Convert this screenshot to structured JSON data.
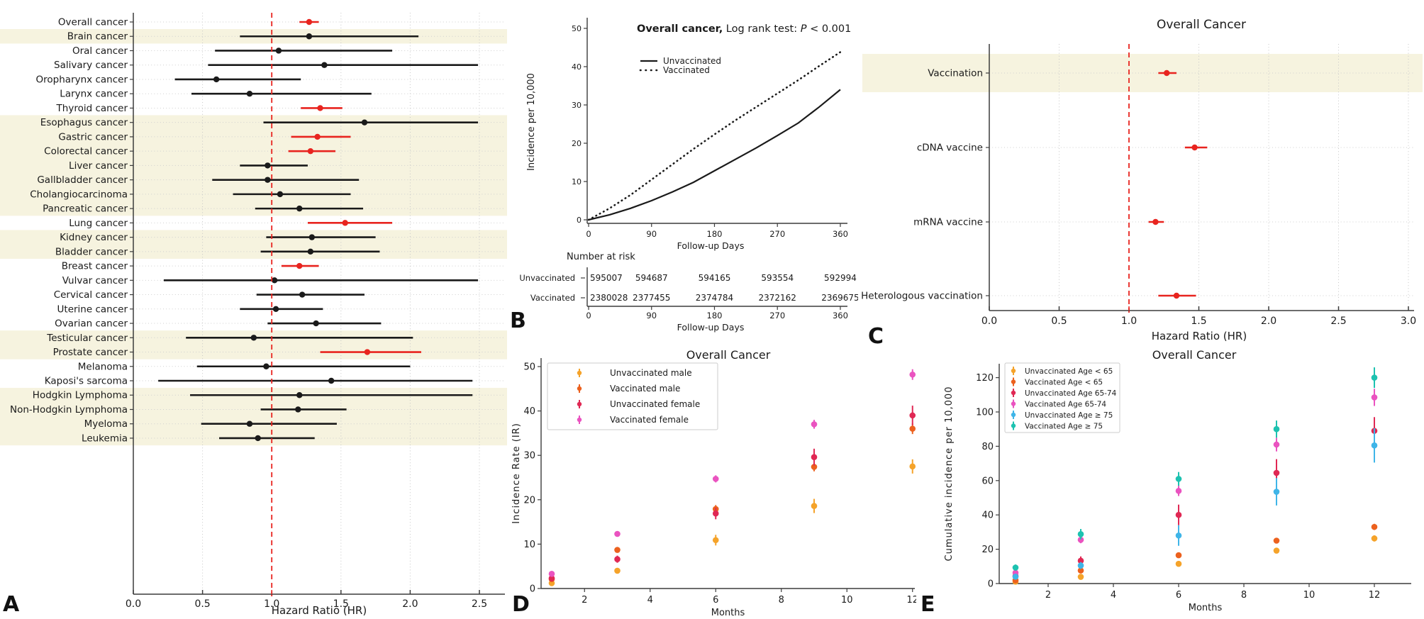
{
  "colors": {
    "significant": "#e8241f",
    "nonsignificant": "#1a1a1a",
    "band": "#f6f3df",
    "grid": "#c6c6c6",
    "axis": "#3c3c3c",
    "ref_line": "#e8241f",
    "curve": "#1a1a1a"
  },
  "chart_data": [
    {
      "id": "A",
      "type": "forest",
      "letter": "A",
      "xlabel": "Hazard Ratio (HR)",
      "x_ticks": [
        "0.0",
        "0.5",
        "1.0",
        "1.5",
        "2.0",
        "2.5"
      ],
      "xlim": [
        0,
        2.68
      ],
      "ref_line": 1.0,
      "rows": [
        {
          "label": "Overall cancer",
          "hr": 1.27,
          "lo": 1.2,
          "hi": 1.34,
          "sig": true,
          "shaded": false
        },
        {
          "label": "Brain cancer",
          "hr": 1.27,
          "lo": 0.77,
          "hi": 2.06,
          "sig": false,
          "shaded": true
        },
        {
          "label": "Oral cancer",
          "hr": 1.05,
          "lo": 0.59,
          "hi": 1.87,
          "sig": false,
          "shaded": false
        },
        {
          "label": "Salivary cancer",
          "hr": 1.38,
          "lo": 0.54,
          "hi": 2.49,
          "sig": false,
          "shaded": false
        },
        {
          "label": "Oropharynx cancer",
          "hr": 0.6,
          "lo": 0.3,
          "hi": 1.21,
          "sig": false,
          "shaded": false
        },
        {
          "label": "Larynx cancer",
          "hr": 0.84,
          "lo": 0.42,
          "hi": 1.72,
          "sig": false,
          "shaded": false
        },
        {
          "label": "Thyroid cancer",
          "hr": 1.35,
          "lo": 1.21,
          "hi": 1.51,
          "sig": true,
          "shaded": false
        },
        {
          "label": "Esophagus cancer",
          "hr": 1.67,
          "lo": 0.94,
          "hi": 2.49,
          "sig": false,
          "shaded": true
        },
        {
          "label": "Gastric cancer",
          "hr": 1.33,
          "lo": 1.14,
          "hi": 1.57,
          "sig": true,
          "shaded": true
        },
        {
          "label": "Colorectal cancer",
          "hr": 1.28,
          "lo": 1.12,
          "hi": 1.46,
          "sig": true,
          "shaded": true
        },
        {
          "label": "Liver cancer",
          "hr": 0.97,
          "lo": 0.77,
          "hi": 1.26,
          "sig": false,
          "shaded": true
        },
        {
          "label": "Gallbladder cancer",
          "hr": 0.97,
          "lo": 0.57,
          "hi": 1.63,
          "sig": false,
          "shaded": true
        },
        {
          "label": "Cholangiocarcinoma",
          "hr": 1.06,
          "lo": 0.72,
          "hi": 1.57,
          "sig": false,
          "shaded": true
        },
        {
          "label": "Pancreatic cancer",
          "hr": 1.2,
          "lo": 0.88,
          "hi": 1.66,
          "sig": false,
          "shaded": true
        },
        {
          "label": "Lung cancer",
          "hr": 1.53,
          "lo": 1.26,
          "hi": 1.87,
          "sig": true,
          "shaded": false
        },
        {
          "label": "Kidney cancer",
          "hr": 1.29,
          "lo": 0.96,
          "hi": 1.75,
          "sig": false,
          "shaded": true
        },
        {
          "label": "Bladder cancer",
          "hr": 1.28,
          "lo": 0.92,
          "hi": 1.78,
          "sig": false,
          "shaded": true
        },
        {
          "label": "Breast cancer",
          "hr": 1.2,
          "lo": 1.07,
          "hi": 1.34,
          "sig": true,
          "shaded": false
        },
        {
          "label": "Vulvar cancer",
          "hr": 1.02,
          "lo": 0.22,
          "hi": 2.49,
          "sig": false,
          "shaded": false
        },
        {
          "label": "Cervical cancer",
          "hr": 1.22,
          "lo": 0.89,
          "hi": 1.67,
          "sig": false,
          "shaded": false
        },
        {
          "label": "Uterine cancer",
          "hr": 1.03,
          "lo": 0.77,
          "hi": 1.37,
          "sig": false,
          "shaded": false
        },
        {
          "label": "Ovarian cancer",
          "hr": 1.32,
          "lo": 0.97,
          "hi": 1.79,
          "sig": false,
          "shaded": false
        },
        {
          "label": "Testicular cancer",
          "hr": 0.87,
          "lo": 0.38,
          "hi": 2.02,
          "sig": false,
          "shaded": true
        },
        {
          "label": "Prostate cancer",
          "hr": 1.69,
          "lo": 1.35,
          "hi": 2.08,
          "sig": true,
          "shaded": true
        },
        {
          "label": "Melanoma",
          "hr": 0.96,
          "lo": 0.46,
          "hi": 2.0,
          "sig": false,
          "shaded": false
        },
        {
          "label": "Kaposi's sarcoma",
          "hr": 1.43,
          "lo": 0.18,
          "hi": 2.45,
          "sig": false,
          "shaded": false
        },
        {
          "label": "Hodgkin Lymphoma",
          "hr": 1.2,
          "lo": 0.41,
          "hi": 2.45,
          "sig": false,
          "shaded": true
        },
        {
          "label": "Non-Hodgkin Lymphoma",
          "hr": 1.19,
          "lo": 0.92,
          "hi": 1.54,
          "sig": false,
          "shaded": true
        },
        {
          "label": "Myeloma",
          "hr": 0.84,
          "lo": 0.49,
          "hi": 1.47,
          "sig": false,
          "shaded": true
        },
        {
          "label": "Leukemia",
          "hr": 0.9,
          "lo": 0.62,
          "hi": 1.31,
          "sig": false,
          "shaded": true
        }
      ]
    },
    {
      "id": "B",
      "type": "line",
      "letter": "B",
      "title": {
        "bold": "Overall cancer,",
        "normal": " Log rank test: ",
        "italic": "P",
        "tail": " < 0.001"
      },
      "ylabel": "Incidence per 10,000",
      "xlabel": "Follow-up Days",
      "y_ticks": [
        0,
        10,
        20,
        30,
        40,
        50
      ],
      "x_ticks": [
        0,
        90,
        180,
        270,
        360
      ],
      "ylim": [
        0,
        52
      ],
      "xlim": [
        0,
        375
      ],
      "series": [
        {
          "name": "Unvaccinated",
          "style": "solid",
          "x": [
            0,
            30,
            60,
            90,
            120,
            150,
            180,
            210,
            240,
            270,
            300,
            330,
            360
          ],
          "y": [
            0,
            1.3,
            3.0,
            5.0,
            7.3,
            9.8,
            12.8,
            15.8,
            18.8,
            22.0,
            25.3,
            29.5,
            34.0
          ]
        },
        {
          "name": "Vaccinated",
          "style": "dotted",
          "x": [
            0,
            30,
            60,
            90,
            120,
            150,
            180,
            210,
            240,
            270,
            300,
            330,
            360
          ],
          "y": [
            0,
            3.0,
            6.5,
            10.5,
            14.5,
            18.5,
            22.3,
            26.0,
            29.5,
            33.0,
            36.5,
            40.2,
            43.8
          ]
        }
      ],
      "risk_table": {
        "header": "Number at risk",
        "xlabel": "Follow-up Days",
        "x_ticks": [
          0,
          90,
          180,
          270,
          360
        ],
        "rows": [
          {
            "label": "Unvaccinated",
            "values": [
              "595007",
              "594687",
              "594165",
              "593554",
              "592994"
            ]
          },
          {
            "label": "Vaccinated",
            "values": [
              "2380028",
              "2377455",
              "2374784",
              "2372162",
              "2369675"
            ]
          }
        ]
      }
    },
    {
      "id": "C",
      "type": "forest",
      "letter": "C",
      "title": "Overall Cancer",
      "xlabel": "Hazard Ratio (HR)",
      "x_ticks": [
        "0.0",
        "0.5",
        "1.0",
        "1.5",
        "2.0",
        "2.5",
        "3.0"
      ],
      "xlim": [
        0,
        3.06
      ],
      "ref_line": 1.0,
      "rows": [
        {
          "label": "Vaccination",
          "hr": 1.27,
          "lo": 1.21,
          "hi": 1.34,
          "sig": true,
          "shaded": true
        },
        {
          "label": "cDNA vaccine",
          "hr": 1.47,
          "lo": 1.4,
          "hi": 1.56,
          "sig": true,
          "shaded": false
        },
        {
          "label": "mRNA vaccine",
          "hr": 1.19,
          "lo": 1.14,
          "hi": 1.25,
          "sig": true,
          "shaded": false
        },
        {
          "label": "Heterologous vaccination",
          "hr": 1.34,
          "lo": 1.21,
          "hi": 1.48,
          "sig": true,
          "shaded": false
        }
      ]
    },
    {
      "id": "D",
      "type": "scatter",
      "letter": "D",
      "title": "Overall Cancer",
      "ylabel": "Incidence Rate (IR)",
      "xlabel": "Months",
      "x": [
        1,
        3,
        6,
        9,
        12
      ],
      "x_ticks": [
        2,
        4,
        6,
        8,
        10,
        12
      ],
      "y_ticks": [
        0,
        10,
        20,
        30,
        40,
        50
      ],
      "ylim": [
        0,
        52
      ],
      "series": [
        {
          "name": "Unvaccinated male",
          "color": "#f5a32a",
          "y": [
            1.2,
            4.0,
            10.9,
            18.6,
            27.5
          ],
          "err": [
            0.4,
            0.6,
            1.2,
            1.6,
            1.6
          ]
        },
        {
          "name": "Vaccinated male",
          "color": "#ec611e",
          "y": [
            2.1,
            8.7,
            17.9,
            27.4,
            36.0
          ],
          "err": [
            0.3,
            0.6,
            0.9,
            1.0,
            1.2
          ]
        },
        {
          "name": "Unvaccinated female",
          "color": "#e02854",
          "y": [
            2.3,
            6.6,
            16.9,
            29.6,
            39.0
          ],
          "err": [
            0.4,
            0.8,
            1.3,
            1.9,
            2.2
          ]
        },
        {
          "name": "Vaccinated female",
          "color": "#ea53c0",
          "y": [
            3.3,
            12.3,
            24.7,
            37.0,
            48.2
          ],
          "err": [
            0.4,
            0.6,
            0.8,
            1.0,
            1.2
          ]
        }
      ]
    },
    {
      "id": "E",
      "type": "scatter",
      "letter": "E",
      "title": "Overall Cancer",
      "ylabel": "Cumulative incidence per 10,000",
      "xlabel": "Months",
      "x": [
        1,
        3,
        6,
        9,
        12
      ],
      "x_ticks": [
        2,
        4,
        6,
        8,
        10,
        12
      ],
      "y_ticks": [
        0,
        20,
        40,
        60,
        80,
        100,
        120
      ],
      "ylim": [
        0,
        130
      ],
      "series": [
        {
          "name": "Unvaccinated Age < 65",
          "color": "#f5a32a",
          "y": [
            1.1,
            3.9,
            11.5,
            19.2,
            26.3
          ],
          "err": [
            0.4,
            0.8,
            1.2,
            1.5,
            1.8
          ]
        },
        {
          "name": "Vaccinated Age < 65",
          "color": "#ec611e",
          "y": [
            1.9,
            7.6,
            16.5,
            25.0,
            33.0
          ],
          "err": [
            0.4,
            0.9,
            1.4,
            1.6,
            1.8
          ]
        },
        {
          "name": "Unvaccinated Age 65-74",
          "color": "#e02854",
          "y": [
            4.4,
            13.3,
            40.0,
            64.5,
            89.0
          ],
          "err": [
            1.2,
            2.5,
            6.0,
            8.0,
            8.0
          ]
        },
        {
          "name": "Vaccinated Age 65-74",
          "color": "#ea53c0",
          "y": [
            6.3,
            25.5,
            54.0,
            81.0,
            108.5
          ],
          "err": [
            1.2,
            2.0,
            3.0,
            4.0,
            5.0
          ]
        },
        {
          "name": "Unvaccinated Age ≥ 75",
          "color": "#3fb5e8",
          "y": [
            4.0,
            10.5,
            28.0,
            53.5,
            80.5
          ],
          "err": [
            1.5,
            2.0,
            6.0,
            8.0,
            10.0
          ]
        },
        {
          "name": "Vaccinated Age ≥ 75",
          "color": "#1dc2b0",
          "y": [
            9.3,
            28.8,
            61.0,
            90.0,
            120.0
          ],
          "err": [
            1.8,
            3.0,
            4.0,
            5.0,
            6.0
          ]
        }
      ]
    }
  ]
}
